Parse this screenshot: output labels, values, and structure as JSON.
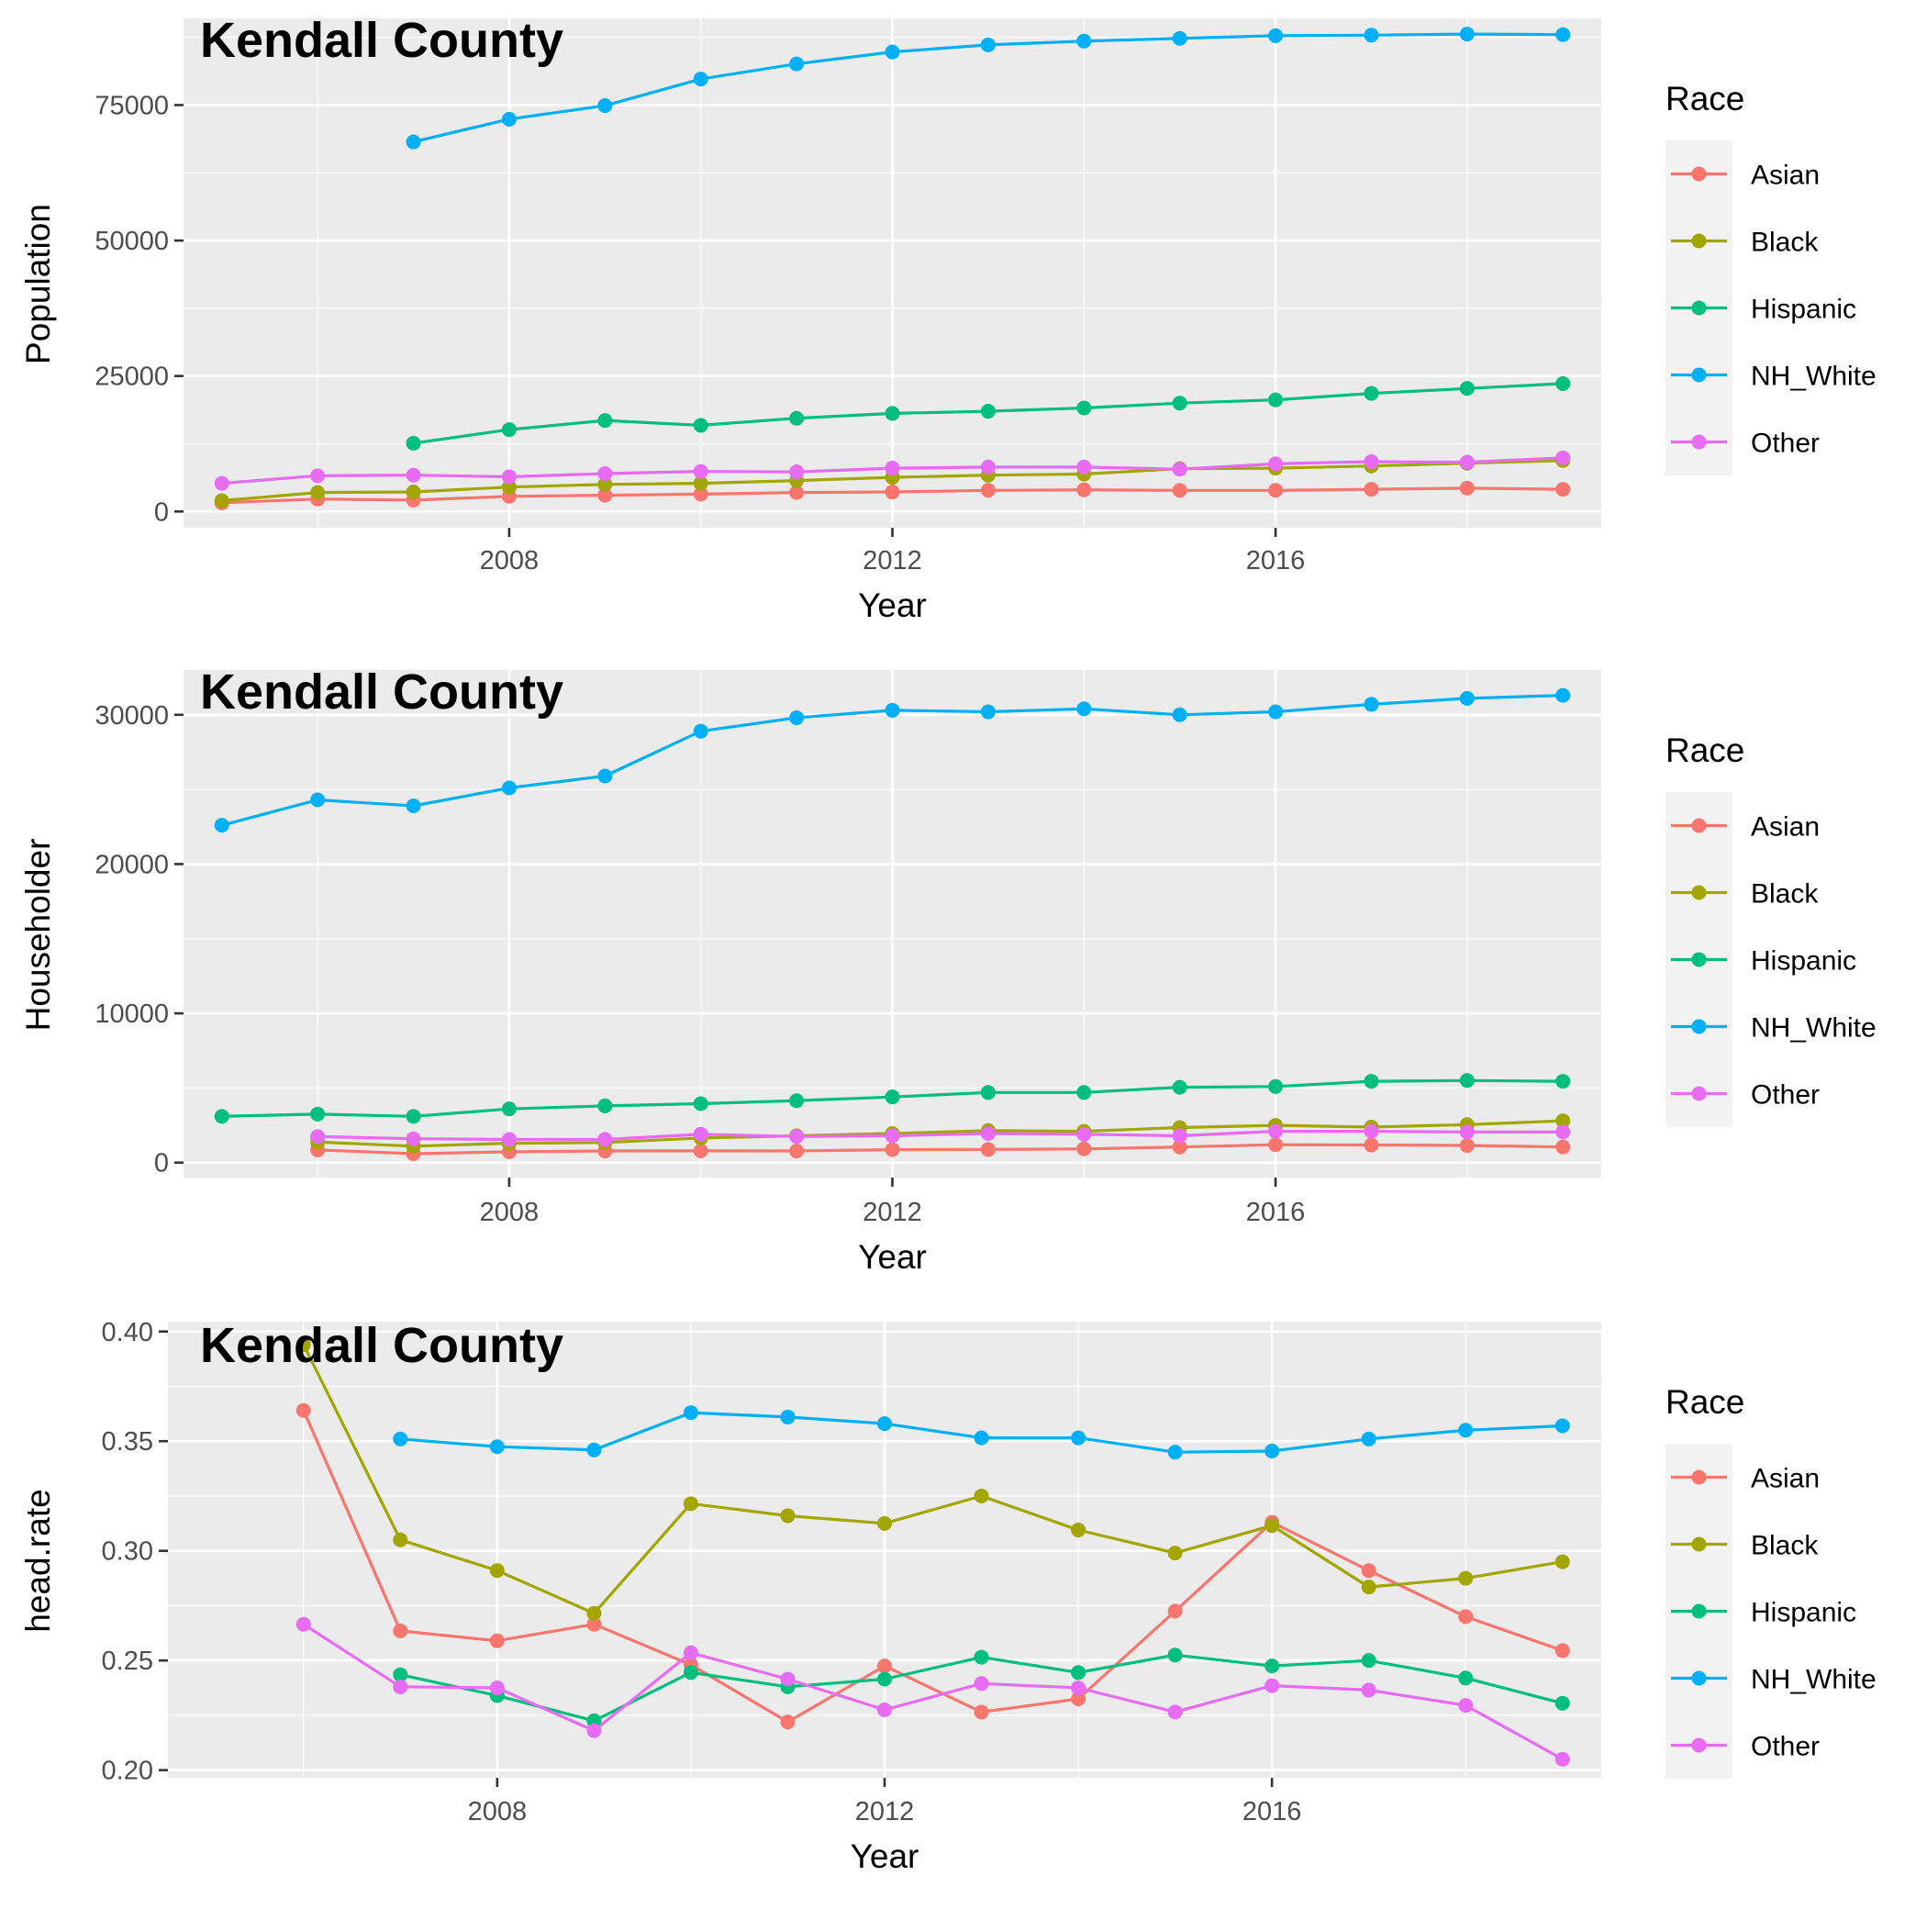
{
  "colors": {
    "Asian": "#F8766D",
    "Black": "#A3A500",
    "Hispanic": "#00BF7D",
    "NH_White": "#00B0F6",
    "Other": "#E76BF3"
  },
  "chart_data": [
    {
      "type": "line",
      "title": "Kendall County",
      "xlabel": "Year",
      "ylabel": "Population",
      "xlim": [
        2004.6,
        2019.4
      ],
      "ylim": [
        -3000,
        91000
      ],
      "xticks": [
        2008,
        2012,
        2016
      ],
      "xtick_labels": [
        "2008",
        "2012",
        "2016"
      ],
      "yticks": [
        0,
        25000,
        50000,
        75000
      ],
      "ytick_labels": [
        "0",
        "25000",
        "50000",
        "75000"
      ],
      "legend": {
        "title": "Race",
        "placement": "right"
      },
      "grid": true,
      "series": [
        {
          "name": "Asian",
          "x": [
            2005,
            2006,
            2007,
            2008,
            2009,
            2010,
            2011,
            2012,
            2013,
            2014,
            2015,
            2016,
            2017,
            2018,
            2019
          ],
          "y": [
            1600,
            2300,
            2100,
            2800,
            3000,
            3200,
            3500,
            3600,
            3900,
            4000,
            3900,
            3900,
            4100,
            4300,
            4100
          ]
        },
        {
          "name": "Black",
          "x": [
            2005,
            2006,
            2007,
            2008,
            2009,
            2010,
            2011,
            2012,
            2013,
            2014,
            2015,
            2016,
            2017,
            2018,
            2019
          ],
          "y": [
            2000,
            3500,
            3600,
            4500,
            5000,
            5200,
            5700,
            6300,
            6700,
            6900,
            7900,
            8000,
            8400,
            8900,
            9400
          ]
        },
        {
          "name": "Hispanic",
          "x": [
            2007,
            2008,
            2009,
            2010,
            2011,
            2012,
            2013,
            2014,
            2015,
            2016,
            2017,
            2018,
            2019
          ],
          "y": [
            12600,
            15100,
            16800,
            15900,
            17200,
            18100,
            18500,
            19100,
            20000,
            20600,
            21800,
            22700,
            23600
          ]
        },
        {
          "name": "NH_White",
          "x": [
            2007,
            2008,
            2009,
            2010,
            2011,
            2012,
            2013,
            2014,
            2015,
            2016,
            2017,
            2018,
            2019
          ],
          "y": [
            68200,
            72400,
            74900,
            79800,
            82600,
            84800,
            86100,
            86800,
            87300,
            87800,
            87900,
            88100,
            88000
          ]
        },
        {
          "name": "Other",
          "x": [
            2005,
            2006,
            2007,
            2008,
            2009,
            2010,
            2011,
            2012,
            2013,
            2014,
            2015,
            2016,
            2017,
            2018,
            2019
          ],
          "y": [
            5200,
            6600,
            6700,
            6400,
            7000,
            7400,
            7300,
            8000,
            8200,
            8200,
            7800,
            8800,
            9200,
            9100,
            9900
          ]
        }
      ]
    },
    {
      "type": "line",
      "title": "Kendall County",
      "xlabel": "Year",
      "ylabel": "Householder",
      "xlim": [
        2004.6,
        2019.4
      ],
      "ylim": [
        -1000,
        33000
      ],
      "xticks": [
        2008,
        2012,
        2016
      ],
      "xtick_labels": [
        "2008",
        "2012",
        "2016"
      ],
      "yticks": [
        0,
        10000,
        20000,
        30000
      ],
      "ytick_labels": [
        "0",
        "10000",
        "20000",
        "30000"
      ],
      "legend": {
        "title": "Race",
        "placement": "right"
      },
      "grid": true,
      "series": [
        {
          "name": "Asian",
          "x": [
            2006,
            2007,
            2008,
            2009,
            2010,
            2011,
            2012,
            2013,
            2014,
            2015,
            2016,
            2017,
            2018,
            2019
          ],
          "y": [
            850,
            600,
            720,
            780,
            790,
            780,
            870,
            880,
            920,
            1050,
            1200,
            1180,
            1150,
            1050
          ]
        },
        {
          "name": "Black",
          "x": [
            2006,
            2007,
            2008,
            2009,
            2010,
            2011,
            2012,
            2013,
            2014,
            2015,
            2016,
            2017,
            2018,
            2019
          ],
          "y": [
            1380,
            1100,
            1300,
            1350,
            1650,
            1800,
            1950,
            2150,
            2100,
            2350,
            2500,
            2380,
            2550,
            2800
          ]
        },
        {
          "name": "Hispanic",
          "x": [
            2005,
            2006,
            2007,
            2008,
            2009,
            2010,
            2011,
            2012,
            2013,
            2014,
            2015,
            2016,
            2017,
            2018,
            2019
          ],
          "y": [
            3100,
            3250,
            3100,
            3600,
            3800,
            3950,
            4150,
            4400,
            4700,
            4700,
            5050,
            5100,
            5450,
            5500,
            5450
          ]
        },
        {
          "name": "NH_White",
          "x": [
            2005,
            2006,
            2007,
            2008,
            2009,
            2010,
            2011,
            2012,
            2013,
            2014,
            2015,
            2016,
            2017,
            2018,
            2019
          ],
          "y": [
            22600,
            24300,
            23900,
            25100,
            25900,
            28900,
            29800,
            30300,
            30200,
            30400,
            30000,
            30200,
            30700,
            31100,
            31300
          ]
        },
        {
          "name": "Other",
          "x": [
            2006,
            2007,
            2008,
            2009,
            2010,
            2011,
            2012,
            2013,
            2014,
            2015,
            2016,
            2017,
            2018,
            2019
          ],
          "y": [
            1750,
            1600,
            1550,
            1550,
            1900,
            1750,
            1800,
            1950,
            1900,
            1800,
            2100,
            2100,
            2050,
            2050
          ]
        }
      ]
    },
    {
      "type": "line",
      "title": "Kendall County",
      "xlabel": "Year",
      "ylabel": "head.rate",
      "xlim": [
        2004.6,
        2019.4
      ],
      "ylim": [
        0.1965,
        0.4045
      ],
      "xticks": [
        2008,
        2012,
        2016
      ],
      "xtick_labels": [
        "2008",
        "2012",
        "2016"
      ],
      "yticks": [
        0.2,
        0.25,
        0.3,
        0.35,
        0.4
      ],
      "ytick_labels": [
        "0.20",
        "0.25",
        "0.30",
        "0.35",
        "0.40"
      ],
      "legend": {
        "title": "Race",
        "placement": "right"
      },
      "grid": true,
      "series": [
        {
          "name": "Asian",
          "x": [
            2006,
            2007,
            2008,
            2009,
            2010,
            2011,
            2012,
            2013,
            2014,
            2015,
            2016,
            2017,
            2018,
            2019
          ],
          "y": [
            0.364,
            0.2635,
            0.259,
            0.2665,
            0.248,
            0.222,
            0.2475,
            0.2265,
            0.2325,
            0.2725,
            0.313,
            0.291,
            0.27,
            0.2545
          ]
        },
        {
          "name": "Black",
          "x": [
            2006,
            2007,
            2008,
            2009,
            2010,
            2011,
            2012,
            2013,
            2014,
            2015,
            2016,
            2017,
            2018,
            2019
          ],
          "y": [
            0.394,
            0.305,
            0.291,
            0.2715,
            0.3215,
            0.316,
            0.3125,
            0.325,
            0.3095,
            0.299,
            0.3115,
            0.2835,
            0.2875,
            0.295
          ]
        },
        {
          "name": "Hispanic",
          "x": [
            2007,
            2008,
            2009,
            2010,
            2011,
            2012,
            2013,
            2014,
            2015,
            2016,
            2017,
            2018,
            2019
          ],
          "y": [
            0.2435,
            0.234,
            0.2225,
            0.2445,
            0.238,
            0.2415,
            0.2515,
            0.2445,
            0.2525,
            0.2475,
            0.25,
            0.242,
            0.2305
          ]
        },
        {
          "name": "NH_White",
          "x": [
            2007,
            2008,
            2009,
            2010,
            2011,
            2012,
            2013,
            2014,
            2015,
            2016,
            2017,
            2018,
            2019
          ],
          "y": [
            0.351,
            0.3475,
            0.346,
            0.363,
            0.361,
            0.358,
            0.3515,
            0.3515,
            0.345,
            0.3455,
            0.351,
            0.355,
            0.357
          ]
        },
        {
          "name": "Other",
          "x": [
            2006,
            2007,
            2008,
            2009,
            2010,
            2011,
            2012,
            2013,
            2014,
            2015,
            2016,
            2017,
            2018,
            2019
          ],
          "y": [
            0.2665,
            0.238,
            0.2375,
            0.218,
            0.2535,
            0.2415,
            0.2275,
            0.2395,
            0.2375,
            0.2265,
            0.2385,
            0.2365,
            0.2295,
            0.205
          ]
        }
      ]
    }
  ]
}
